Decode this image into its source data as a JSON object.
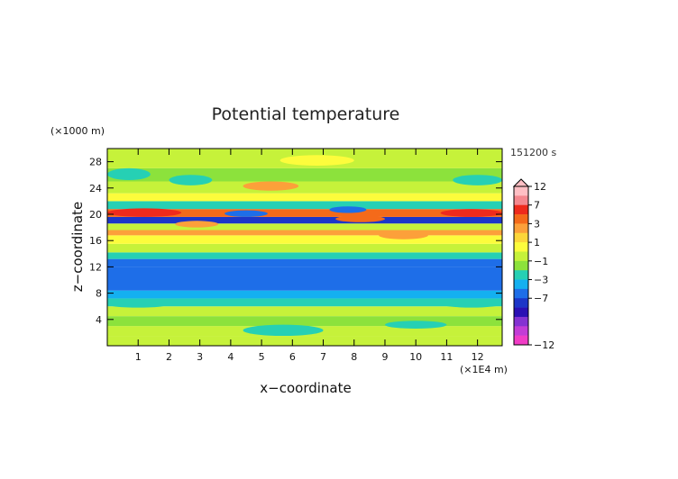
{
  "chart_data": {
    "type": "heatmap",
    "title": "Potential temperature",
    "xlabel": "x−coordinate",
    "ylabel": "z−coordinate",
    "x_unit": "(×1E4 m)",
    "y_unit": "(×1000 m)",
    "time": "151200 s",
    "xlim": [
      0,
      12.8
    ],
    "ylim": [
      0,
      30
    ],
    "x_ticks": [
      "1",
      "2",
      "3",
      "4",
      "5",
      "6",
      "7",
      "8",
      "9",
      "10",
      "11",
      "12"
    ],
    "y_ticks": [
      "4",
      "8",
      "12",
      "16",
      "20",
      "24",
      "28"
    ],
    "colorbar": {
      "ticks": [
        "12",
        "7",
        "3",
        "1",
        "−1",
        "−3",
        "−7",
        "−12"
      ],
      "levels": [
        {
          "lower": 11,
          "color": "#ffbfc4"
        },
        {
          "lower": 9,
          "color": "#f4888f"
        },
        {
          "lower": 7,
          "color": "#ee2a1c"
        },
        {
          "lower": 5,
          "color": "#f46a1a"
        },
        {
          "lower": 3,
          "color": "#fca03a"
        },
        {
          "lower": 2,
          "color": "#fcd63a"
        },
        {
          "lower": 1,
          "color": "#fcfc3c"
        },
        {
          "lower": 0,
          "color": "#c6f23a"
        },
        {
          "lower": -1,
          "color": "#8ce23c"
        },
        {
          "lower": -2,
          "color": "#26d0b4"
        },
        {
          "lower": -3,
          "color": "#14b0f0"
        },
        {
          "lower": -5,
          "color": "#1e6ee8"
        },
        {
          "lower": -7,
          "color": "#1c36c8"
        },
        {
          "lower": -9,
          "color": "#2a10b4"
        },
        {
          "lower": -10,
          "color": "#8432d2"
        },
        {
          "lower": -11,
          "color": "#c23cd6"
        },
        {
          "lower": -12,
          "color": "#f03cc6"
        }
      ]
    },
    "rows": [
      {
        "z": [
          0,
          1.5
        ],
        "value": 0.6
      },
      {
        "z": [
          1.5,
          3
        ],
        "value": 0.2
      },
      {
        "z": [
          3,
          4.5
        ],
        "value": -0.5
      },
      {
        "z": [
          4.5,
          6
        ],
        "value": 0.3
      },
      {
        "z": [
          6,
          7.2
        ],
        "value": -1.5
      },
      {
        "z": [
          7.2,
          8.4
        ],
        "value": -2.6
      },
      {
        "z": [
          8.4,
          12
        ],
        "value": -4.2
      },
      {
        "z": [
          12,
          13.2
        ],
        "value": -3.4
      },
      {
        "z": [
          13.2,
          14.2
        ],
        "value": -1.5
      },
      {
        "z": [
          14.2,
          15.5
        ],
        "value": 0.8
      },
      {
        "z": [
          15.5,
          16.8
        ],
        "value": 1.6
      },
      {
        "z": [
          16.8,
          17.6
        ],
        "value": 3.6
      },
      {
        "z": [
          17.6,
          18.6
        ],
        "value": 0.5
      },
      {
        "z": [
          18.6,
          19.6
        ],
        "value": -6.0
      },
      {
        "z": [
          19.6,
          20.8
        ],
        "value": 5.5
      },
      {
        "z": [
          20.8,
          22
        ],
        "value": -1.5
      },
      {
        "z": [
          22,
          23.2
        ],
        "value": 1.2
      },
      {
        "z": [
          23.2,
          25
        ],
        "value": 0.4
      },
      {
        "z": [
          25,
          27
        ],
        "value": -0.4
      },
      {
        "z": [
          27,
          30
        ],
        "value": 0.6
      }
    ],
    "features": [
      {
        "x": [
          0,
          2.4
        ],
        "z": [
          19.6,
          20.9
        ],
        "value": 7.5
      },
      {
        "x": [
          3.8,
          5.2
        ],
        "z": [
          19.6,
          20.6
        ],
        "value": -3.5
      },
      {
        "x": [
          7.2,
          8.4
        ],
        "z": [
          20.2,
          21.2
        ],
        "value": -5.0
      },
      {
        "x": [
          7.4,
          9.0
        ],
        "z": [
          18.8,
          19.8
        ],
        "value": 5.5
      },
      {
        "x": [
          10.8,
          12.8
        ],
        "z": [
          19.6,
          20.8
        ],
        "value": 7.5
      },
      {
        "x": [
          4.4,
          6.2
        ],
        "z": [
          23.6,
          25.0
        ],
        "value": 3.5
      },
      {
        "x": [
          8.8,
          10.4
        ],
        "z": [
          16.2,
          17.4
        ],
        "value": 3.6
      },
      {
        "x": [
          2.2,
          3.6
        ],
        "z": [
          18.0,
          19.0
        ],
        "value": 4.0
      },
      {
        "x": [
          0,
          1.4
        ],
        "z": [
          25.2,
          27.0
        ],
        "value": -1.5
      },
      {
        "x": [
          11.2,
          12.8
        ],
        "z": [
          24.4,
          26.0
        ],
        "value": -1.5
      },
      {
        "x": [
          10.8,
          12.8
        ],
        "z": [
          5.8,
          7.0
        ],
        "value": -1.5
      },
      {
        "x": [
          0,
          2.0
        ],
        "z": [
          5.8,
          6.8
        ],
        "value": -1.5
      },
      {
        "x": [
          4.4,
          7.0
        ],
        "z": [
          1.5,
          3.2
        ],
        "value": -1.5
      },
      {
        "x": [
          9.0,
          11.0
        ],
        "z": [
          2.6,
          3.8
        ],
        "value": -1.5
      },
      {
        "x": [
          5.6,
          8.0
        ],
        "z": [
          27.4,
          29.0
        ],
        "value": 1.5
      },
      {
        "x": [
          2.0,
          3.4
        ],
        "z": [
          24.4,
          26.0
        ],
        "value": -1.2
      }
    ]
  }
}
